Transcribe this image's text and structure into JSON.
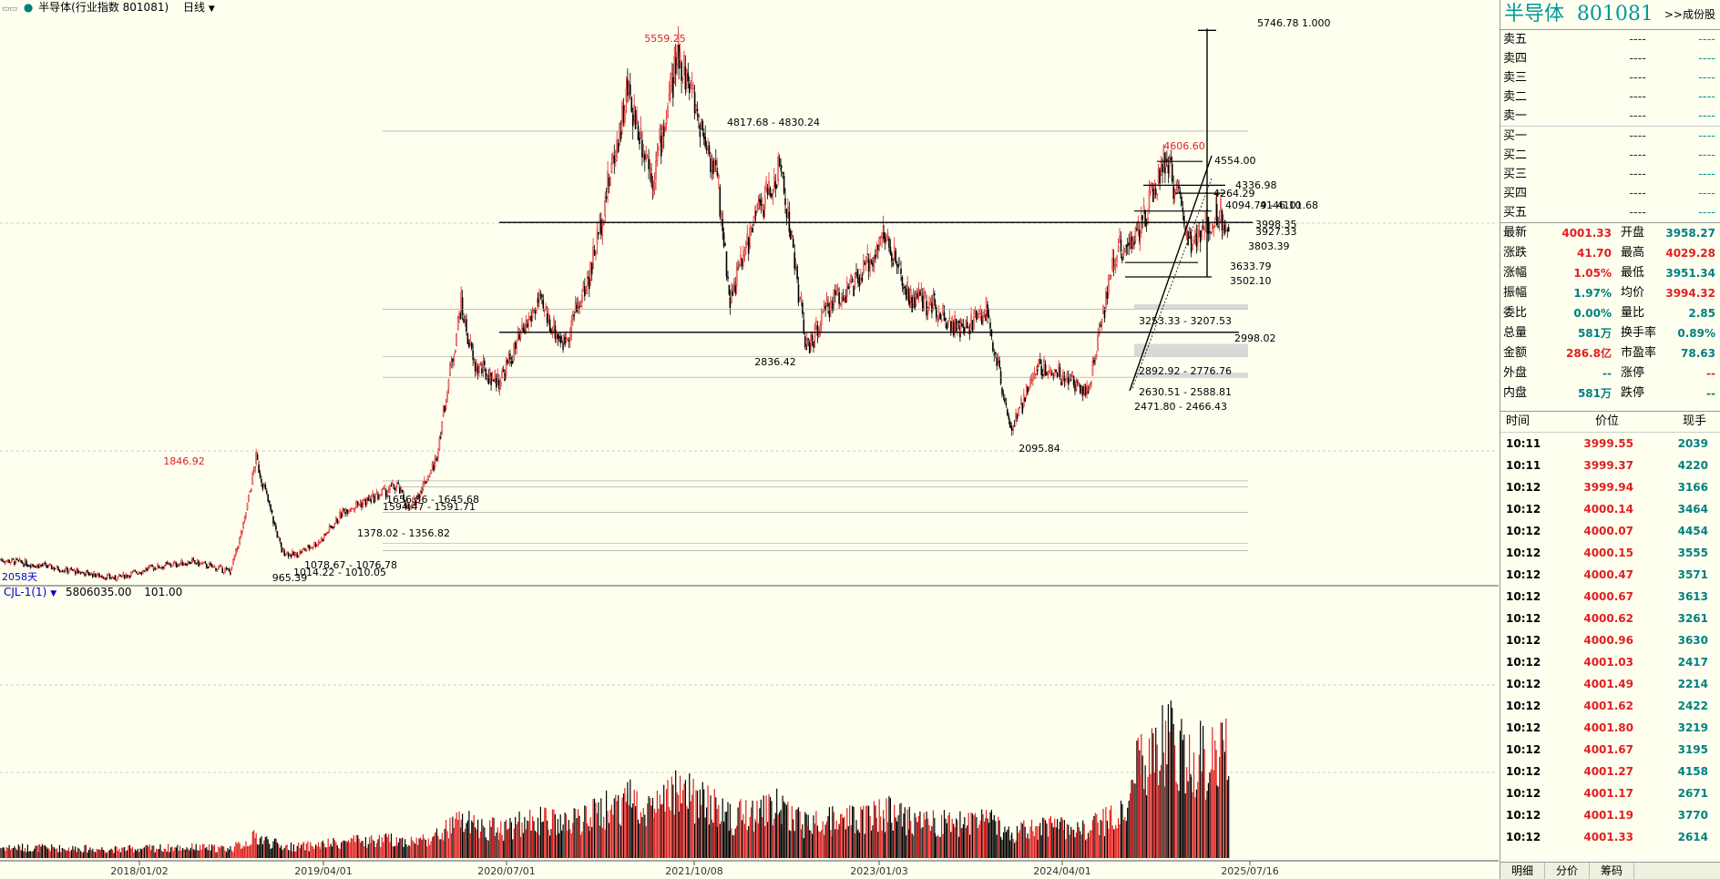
{
  "topbar": {
    "symbol_label": "半导体(行业指数 801081)",
    "period": "日线",
    "period_arrow": "chevron-down-icon"
  },
  "main_chart": {
    "days_label": "2058天",
    "date_ticks": [
      "2018/01/02",
      "2019/04/01",
      "2020/07/01",
      "2021/10/08",
      "2023/01/03",
      "2024/04/01",
      "2025/07/16"
    ],
    "high_labels": [
      {
        "text": "5559.25",
        "color": "#E02020"
      },
      {
        "text": "1846.92",
        "color": "#E02020"
      },
      {
        "text": "4606.60",
        "color": "#E02020"
      }
    ],
    "low_labels": [
      "2836.42",
      "2095.84",
      "965.39"
    ],
    "levels": [
      "5746.78 1.000",
      "4817.68 - 4830.24",
      "4554.00",
      "4336.98",
      "4264.29",
      "4094.79 - 4101.68",
      "4146.10",
      "3998.35",
      "3927.33",
      "3803.39",
      "3633.79",
      "3502.10",
      "3253.33 - 3207.53",
      "2998.02",
      "2892.92 - 2776.76",
      "2630.51 - 2588.81",
      "2471.80 - 2466.43",
      "1656.56 - 1645.68",
      "1594.47 - 1591.71",
      "1378.02 - 1356.82",
      "1078.67 - 1076.78",
      "1014.22 - 1010.05"
    ]
  },
  "volume_panel": {
    "indicator": "CJL-1(1)",
    "value": "5806035.00",
    "value2": "101.00"
  },
  "quote": {
    "name": "半导体",
    "code": "801081",
    "link": ">>成份股",
    "order_book": [
      {
        "label": "卖五",
        "price": "----",
        "vol": "----"
      },
      {
        "label": "卖四",
        "price": "----",
        "vol": "----"
      },
      {
        "label": "卖三",
        "price": "----",
        "vol": "----"
      },
      {
        "label": "卖二",
        "price": "----",
        "vol": "----"
      },
      {
        "label": "卖一",
        "price": "----",
        "vol": "----"
      },
      {
        "label": "买一",
        "price": "----",
        "vol": "----"
      },
      {
        "label": "买二",
        "price": "----",
        "vol": "----"
      },
      {
        "label": "买三",
        "price": "----",
        "vol": "----"
      },
      {
        "label": "买四",
        "price": "----",
        "vol": "----"
      },
      {
        "label": "买五",
        "price": "----",
        "vol": "----"
      }
    ],
    "stats": [
      {
        "l1": "最新",
        "v1": "4001.33",
        "c1": "red",
        "l2": "开盘",
        "v2": "3958.27",
        "c2": "cyan"
      },
      {
        "l1": "涨跌",
        "v1": "41.70",
        "c1": "red",
        "l2": "最高",
        "v2": "4029.28",
        "c2": "red"
      },
      {
        "l1": "涨幅",
        "v1": "1.05%",
        "c1": "red",
        "l2": "最低",
        "v2": "3951.34",
        "c2": "cyan"
      },
      {
        "l1": "振幅",
        "v1": "1.97%",
        "c1": "cyan",
        "l2": "均价",
        "v2": "3994.32",
        "c2": "red"
      },
      {
        "l1": "委比",
        "v1": "0.00%",
        "c1": "cyan",
        "l2": "量比",
        "v2": "2.85",
        "c2": "cyan"
      },
      {
        "l1": "总量",
        "v1": "581万",
        "c1": "cyan",
        "l2": "换手率",
        "v2": "0.89%",
        "c2": "cyan"
      },
      {
        "l1": "金额",
        "v1": "286.8亿",
        "c1": "red",
        "l2": "市盈率",
        "v2": "78.63",
        "c2": "cyan"
      },
      {
        "l1": "外盘",
        "v1": "--",
        "c1": "cyan",
        "l2": "涨停",
        "v2": "--",
        "c2": "red"
      },
      {
        "l1": "内盘",
        "v1": "581万",
        "c1": "cyan",
        "l2": "跌停",
        "v2": "--",
        "c2": "grn"
      }
    ],
    "ticks_header": {
      "time": "时间",
      "price": "价位",
      "vol": "现手"
    },
    "ticks": [
      {
        "time": "10:11",
        "price": "3999.55",
        "vol": "2039"
      },
      {
        "time": "10:11",
        "price": "3999.37",
        "vol": "4220"
      },
      {
        "time": "10:12",
        "price": "3999.94",
        "vol": "3166"
      },
      {
        "time": "10:12",
        "price": "4000.14",
        "vol": "3464"
      },
      {
        "time": "10:12",
        "price": "4000.07",
        "vol": "4454"
      },
      {
        "time": "10:12",
        "price": "4000.15",
        "vol": "3555"
      },
      {
        "time": "10:12",
        "price": "4000.47",
        "vol": "3571"
      },
      {
        "time": "10:12",
        "price": "4000.67",
        "vol": "3613"
      },
      {
        "time": "10:12",
        "price": "4000.62",
        "vol": "3261"
      },
      {
        "time": "10:12",
        "price": "4000.96",
        "vol": "3630"
      },
      {
        "time": "10:12",
        "price": "4001.03",
        "vol": "2417"
      },
      {
        "time": "10:12",
        "price": "4001.49",
        "vol": "2214"
      },
      {
        "time": "10:12",
        "price": "4001.62",
        "vol": "2422"
      },
      {
        "time": "10:12",
        "price": "4001.80",
        "vol": "3219"
      },
      {
        "time": "10:12",
        "price": "4001.67",
        "vol": "3195"
      },
      {
        "time": "10:12",
        "price": "4001.27",
        "vol": "4158"
      },
      {
        "time": "10:12",
        "price": "4001.17",
        "vol": "2671"
      },
      {
        "time": "10:12",
        "price": "4001.19",
        "vol": "3770"
      },
      {
        "time": "10:12",
        "price": "4001.33",
        "vol": "2614"
      }
    ],
    "tabs": [
      "明细",
      "分价",
      "筹码"
    ]
  },
  "chart_data": {
    "type": "candlestick",
    "title": "半导体(行业指数 801081)",
    "xlabel": "",
    "ylabel": "",
    "x_ticks": [
      "2018/01/02",
      "2019/04/01",
      "2020/07/01",
      "2021/10/08",
      "2023/01/03",
      "2024/04/01",
      "2025/07/16"
    ],
    "ylim": [
      900,
      5800
    ],
    "price_path": [
      [
        "2017/07",
        930
      ],
      [
        "2017/10",
        880
      ],
      [
        "2018/01",
        820
      ],
      [
        "2018/04",
        760
      ],
      [
        "2018/07",
        860
      ],
      [
        "2018/10",
        910
      ],
      [
        "2019/01",
        820
      ],
      [
        "2019/02",
        1230
      ],
      [
        "2019/03",
        1846.92
      ],
      [
        "2019/05",
        1010
      ],
      [
        "2019/06",
        965.39
      ],
      [
        "2019/08",
        1100
      ],
      [
        "2019/10",
        1390
      ],
      [
        "2019/12",
        1480
      ],
      [
        "2020/02",
        1600
      ],
      [
        "2020/03",
        1380
      ],
      [
        "2020/05",
        1820
      ],
      [
        "2020/07",
        3250
      ],
      [
        "2020/08",
        2700
      ],
      [
        "2020/10",
        2550
      ],
      [
        "2021/01",
        3270
      ],
      [
        "2021/03",
        2900
      ],
      [
        "2021/05",
        3500
      ],
      [
        "2021/08",
        5200
      ],
      [
        "2021/10",
        4400
      ],
      [
        "2021/12",
        5559.25
      ],
      [
        "2022/03",
        4400
      ],
      [
        "2022/04",
        3300
      ],
      [
        "2022/06",
        4050
      ],
      [
        "2022/08",
        4500
      ],
      [
        "2022/10",
        2836.42
      ],
      [
        "2022/12",
        3300
      ],
      [
        "2023/02",
        3450
      ],
      [
        "2023/04",
        3900
      ],
      [
        "2023/06",
        3300
      ],
      [
        "2023/08",
        3250
      ],
      [
        "2023/10",
        3000
      ],
      [
        "2023/12",
        3200
      ],
      [
        "2024/02",
        2095.84
      ],
      [
        "2024/04",
        2700
      ],
      [
        "2024/06",
        2600
      ],
      [
        "2024/08",
        2466.43
      ],
      [
        "2024/10",
        3700
      ],
      [
        "2024/12",
        3900
      ],
      [
        "2025/02",
        4606.6
      ],
      [
        "2025/04",
        3800
      ],
      [
        "2025/06",
        4100
      ],
      [
        "2025/07",
        4001.33
      ]
    ],
    "volume_peak": 5806035.0
  }
}
